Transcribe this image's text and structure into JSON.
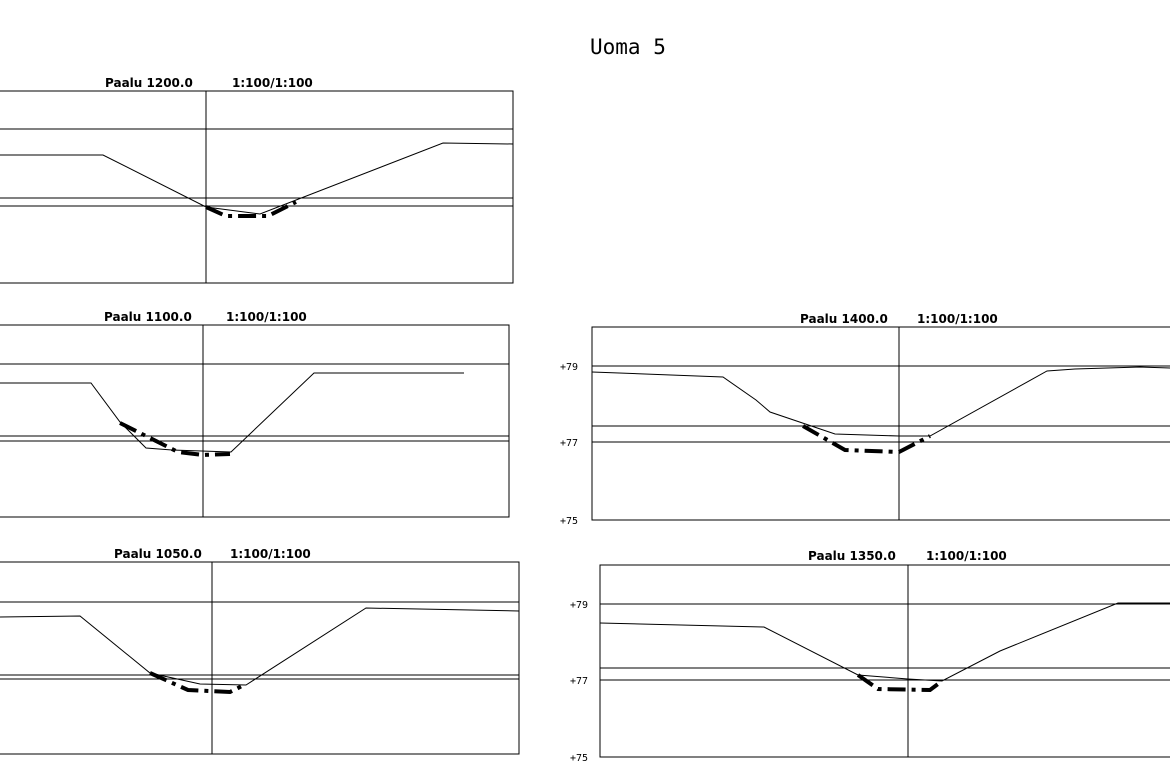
{
  "title": "Uoma 5",
  "panels": [
    {
      "id": "p1200",
      "label": "Paalu 1200.0",
      "scale": "1:100/1:100",
      "elevation_labels": []
    },
    {
      "id": "p1100",
      "label": "Paalu 1100.0",
      "scale": "1:100/1:100",
      "elevation_labels": []
    },
    {
      "id": "p1050",
      "label": "Paalu 1050.0",
      "scale": "1:100/1:100",
      "elevation_labels": []
    },
    {
      "id": "p1400",
      "label": "Paalu 1400.0",
      "scale": "1:100/1:100",
      "elevation_labels": [
        "+79",
        "+77",
        "+75"
      ]
    },
    {
      "id": "p1350",
      "label": "Paalu 1350.0",
      "scale": "1:100/1:100",
      "elevation_labels": [
        "+79",
        "+77",
        "+75"
      ]
    }
  ]
}
